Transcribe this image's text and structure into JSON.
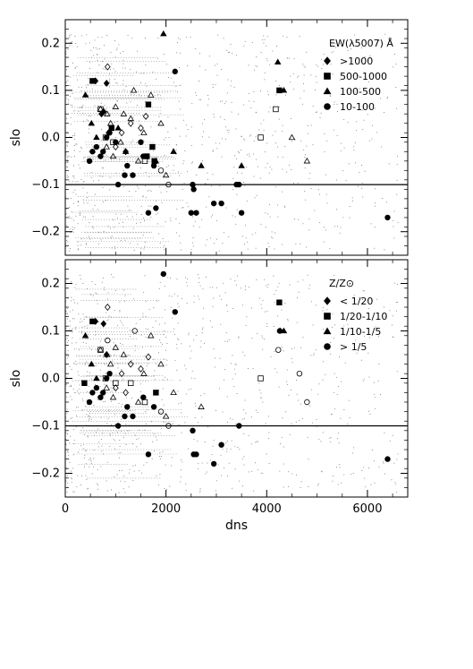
{
  "chart_data": [
    {
      "type": "scatter",
      "panel": "top",
      "xlabel": "",
      "ylabel": "slo",
      "xlim": [
        0,
        6800
      ],
      "ylim": [
        -0.25,
        0.25
      ],
      "yticks": [
        0.2,
        0.1,
        0.0,
        -0.1,
        -0.2
      ],
      "ytick_labels": [
        "0.2",
        "0.1",
        "0.0",
        "−0.1",
        "−0.2"
      ],
      "hline": -0.1,
      "legend": {
        "title": "EW(λ5007) Å",
        "entries": [
          {
            "marker": "diamond",
            "label": ">1000"
          },
          {
            "marker": "square",
            "label": "500-1000"
          },
          {
            "marker": "triangle",
            "label": "100-500"
          },
          {
            "marker": "circle",
            "label": "10-100"
          }
        ],
        "position": "top-right"
      },
      "series": [
        {
          "name": ">1000",
          "marker": "diamond",
          "filled": true,
          "x": [
            600,
            720,
            760,
            820,
            860
          ],
          "y": [
            0.12,
            0.05,
            0.055,
            0.115,
            0.01
          ]
        },
        {
          "name": ">1000",
          "marker": "diamond",
          "filled": false,
          "x": [
            840,
            1300,
            1500,
            1600,
            1120,
            1000,
            1200
          ],
          "y": [
            0.15,
            0.03,
            0.02,
            0.045,
            0.01,
            -0.02,
            -0.03
          ]
        },
        {
          "name": "500-1000",
          "marker": "square",
          "filled": true,
          "x": [
            540,
            920,
            1650,
            1620,
            1730,
            1770,
            4250
          ],
          "y": [
            0.12,
            0.02,
            0.07,
            -0.04,
            -0.02,
            -0.05,
            0.1
          ]
        },
        {
          "name": "500-1000",
          "marker": "square",
          "filled": false,
          "x": [
            700,
            800,
            1580,
            3880,
            4180,
            950
          ],
          "y": [
            0.06,
            0.0,
            -0.05,
            0.0,
            0.06,
            -0.01
          ]
        },
        {
          "name": "100-500",
          "marker": "triangle",
          "filled": true,
          "x": [
            400,
            520,
            620,
            1050,
            1200,
            1800,
            1950,
            2150,
            2700,
            3500,
            4220,
            4340
          ],
          "y": [
            0.09,
            0.03,
            0.0,
            0.02,
            -0.03,
            -0.05,
            0.22,
            -0.03,
            -0.06,
            -0.06,
            0.16,
            0.1
          ]
        },
        {
          "name": "100-500",
          "marker": "triangle",
          "filled": false,
          "x": [
            700,
            830,
            900,
            1000,
            1160,
            1300,
            1360,
            1450,
            1560,
            1700,
            1900,
            2000,
            4500,
            4800,
            820,
            950,
            1100
          ],
          "y": [
            0.06,
            0.05,
            0.03,
            0.065,
            0.05,
            0.04,
            0.1,
            -0.05,
            0.01,
            0.09,
            0.03,
            -0.08,
            0.0,
            -0.05,
            -0.02,
            -0.04,
            -0.01
          ]
        },
        {
          "name": "10-100",
          "marker": "circle",
          "filled": true,
          "x": [
            480,
            540,
            620,
            700,
            750,
            820,
            880,
            1000,
            1050,
            1180,
            1340,
            1500,
            1550,
            1650,
            1760,
            2180,
            2550,
            2530,
            2500,
            2950,
            3100,
            3450,
            3500,
            4260,
            6400,
            3400,
            2600,
            1800,
            1230
          ],
          "y": [
            -0.05,
            -0.03,
            -0.02,
            -0.04,
            -0.03,
            0.0,
            0.01,
            -0.01,
            -0.1,
            -0.08,
            -0.08,
            -0.01,
            -0.04,
            -0.16,
            -0.06,
            0.14,
            -0.11,
            -0.1,
            -0.16,
            -0.14,
            -0.14,
            -0.1,
            -0.16,
            0.1,
            -0.17,
            -0.1,
            -0.16,
            -0.15,
            -0.06
          ]
        },
        {
          "name": "10-100",
          "marker": "circle",
          "filled": false,
          "x": [
            2050,
            1900
          ],
          "y": [
            -0.1,
            -0.07
          ]
        }
      ]
    },
    {
      "type": "scatter",
      "panel": "bottom",
      "xlabel": "dns",
      "ylabel": "slo",
      "xlim": [
        0,
        6800
      ],
      "ylim": [
        -0.25,
        0.25
      ],
      "xticks": [
        0,
        2000,
        4000,
        6000
      ],
      "xtick_labels": [
        "0",
        "2000",
        "4000",
        "6000"
      ],
      "yticks": [
        0.2,
        0.1,
        0.0,
        -0.1,
        -0.2
      ],
      "ytick_labels": [
        "0.2",
        "0.1",
        "0.0",
        "−0.1",
        "−0.2"
      ],
      "hline": -0.1,
      "legend": {
        "title": "Z/Z⊙",
        "entries": [
          {
            "marker": "diamond",
            "label": "< 1/20"
          },
          {
            "marker": "square",
            "label": "1/20-1/10"
          },
          {
            "marker": "triangle",
            "label": "1/10-1/5"
          },
          {
            "marker": "circle",
            "label": "> 1/5"
          }
        ],
        "position": "top-right"
      },
      "series": [
        {
          "name": "< 1/20",
          "marker": "diamond",
          "filled": true,
          "x": [
            600,
            760,
            820
          ],
          "y": [
            0.12,
            0.115,
            0.05
          ]
        },
        {
          "name": "< 1/20",
          "marker": "diamond",
          "filled": false,
          "x": [
            840,
            1300,
            1500,
            1120,
            1000,
            1200,
            1650
          ],
          "y": [
            0.15,
            0.03,
            0.02,
            0.01,
            -0.02,
            -0.03,
            0.045
          ]
        },
        {
          "name": "1/20-1/10",
          "marker": "square",
          "filled": true,
          "x": [
            540,
            380,
            1800,
            4250
          ],
          "y": [
            0.12,
            -0.01,
            -0.03,
            0.16
          ]
        },
        {
          "name": "1/20-1/10",
          "marker": "square",
          "filled": false,
          "x": [
            700,
            800,
            1580,
            3880,
            1000,
            1300
          ],
          "y": [
            0.06,
            0.0,
            -0.05,
            0.0,
            -0.01,
            -0.01
          ]
        },
        {
          "name": "1/10-1/5",
          "marker": "triangle",
          "filled": true,
          "x": [
            400,
            520,
            620,
            4340
          ],
          "y": [
            0.09,
            0.03,
            0.0,
            0.1
          ]
        },
        {
          "name": "1/10-1/5",
          "marker": "triangle",
          "filled": false,
          "x": [
            700,
            830,
            900,
            1000,
            1160,
            1450,
            1560,
            1700,
            1900,
            2000,
            820,
            950,
            2150,
            2700
          ],
          "y": [
            0.06,
            0.05,
            0.03,
            0.065,
            0.05,
            -0.05,
            0.01,
            0.09,
            0.03,
            -0.08,
            -0.02,
            -0.04,
            -0.03,
            -0.06
          ]
        },
        {
          "name": "> 1/5",
          "marker": "circle",
          "filled": true,
          "x": [
            480,
            540,
            620,
            700,
            750,
            820,
            880,
            1050,
            1180,
            1340,
            1550,
            1650,
            1760,
            1950,
            2180,
            2530,
            2550,
            2950,
            3100,
            3450,
            4260,
            6400,
            2600,
            1230
          ],
          "y": [
            -0.05,
            -0.03,
            -0.02,
            -0.04,
            -0.03,
            0.0,
            0.01,
            -0.1,
            -0.08,
            -0.08,
            -0.04,
            -0.16,
            -0.06,
            0.22,
            0.14,
            -0.11,
            -0.16,
            -0.18,
            -0.14,
            -0.1,
            0.1,
            -0.17,
            -0.16,
            -0.06
          ]
        },
        {
          "name": "> 1/5",
          "marker": "circle",
          "filled": false,
          "x": [
            840,
            1380,
            2050,
            4230,
            4650,
            4800,
            1900
          ],
          "y": [
            0.08,
            0.1,
            -0.1,
            0.06,
            0.01,
            -0.05,
            -0.07
          ]
        }
      ]
    }
  ]
}
